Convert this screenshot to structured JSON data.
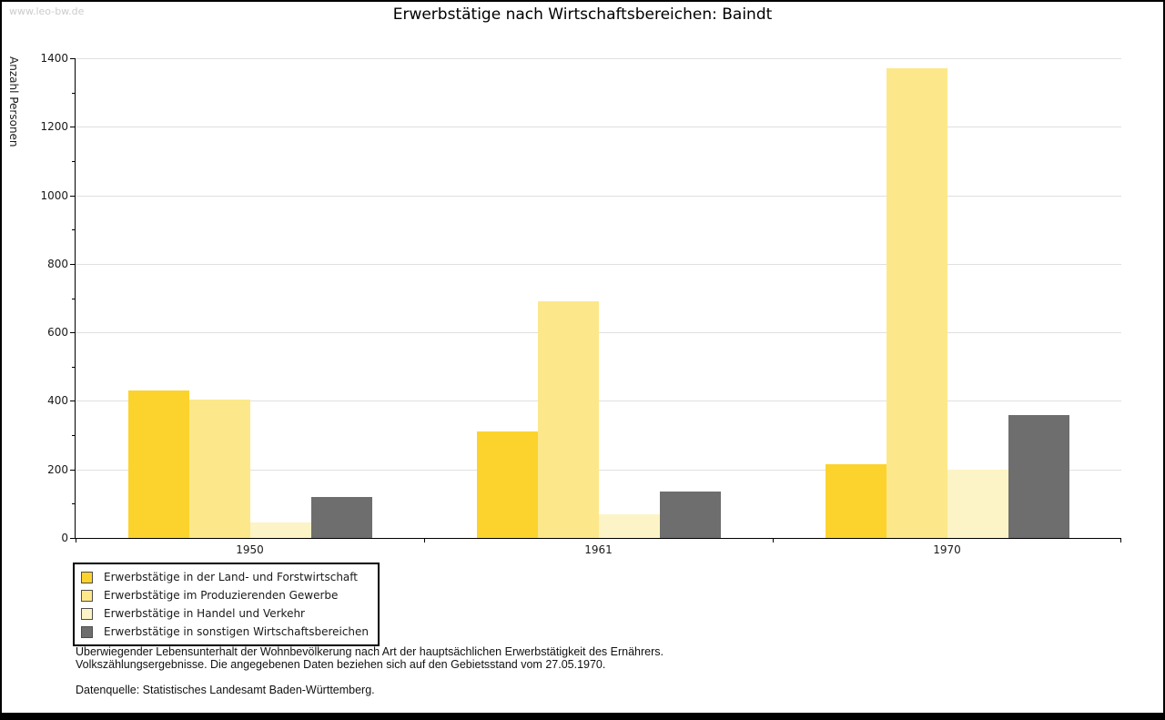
{
  "watermark": "www.leo-bw.de",
  "title": "Erwerbstätige nach Wirtschaftsbereichen: Baindt",
  "chart_data": {
    "type": "bar",
    "title": "Erwerbstätige nach Wirtschaftsbereichen: Baindt",
    "ylabel": "Anzahl Personen",
    "xlabel": "",
    "ylim": [
      0,
      1400
    ],
    "yticks": [
      0,
      200,
      400,
      600,
      800,
      1000,
      1200,
      1400
    ],
    "ytick_step": 200,
    "yminor_step": 100,
    "grid": "horizontal",
    "legend_position": "bottom-left",
    "categories": [
      "1950",
      "1961",
      "1970"
    ],
    "series": [
      {
        "name": "Erwerbstätige in der Land- und Forstwirtschaft",
        "color": "#fcd32d",
        "values": [
          430,
          310,
          215
        ]
      },
      {
        "name": "Erwerbstätige im Produzierenden Gewerbe",
        "color": "#fce88a",
        "values": [
          405,
          690,
          1370
        ]
      },
      {
        "name": "Erwerbstätige in Handel und Verkehr",
        "color": "#fcf4c6",
        "values": [
          45,
          70,
          200
        ]
      },
      {
        "name": "Erwerbstätige in sonstigen Wirtschaftsbereichen",
        "color": "#6e6e6e",
        "values": [
          120,
          135,
          360
        ]
      }
    ]
  },
  "notes": {
    "line1": "Überwiegender Lebensunterhalt der Wohnbevölkerung nach Art der hauptsächlichen Erwerbstätigkeit des Ernährers.",
    "line2": "Volkszählungsergebnisse. Die angegebenen Daten beziehen sich auf den Gebietsstand vom 27.05.1970.",
    "source": "Datenquelle: Statistisches Landesamt Baden-Württemberg."
  },
  "colors": {
    "axis": "#000000",
    "grid": "#e0e0e0",
    "text": "#1a1a1a",
    "watermark": "#cccccc",
    "frame": "#000000"
  }
}
